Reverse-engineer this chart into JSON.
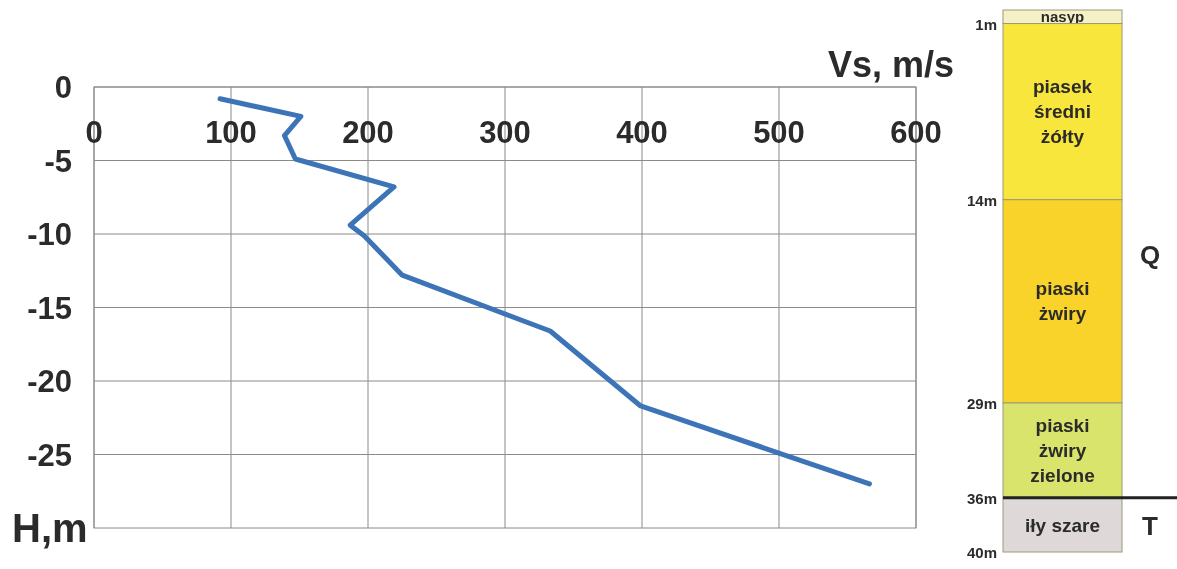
{
  "chart_data": [
    {
      "type": "line",
      "xlabel": "Vs, m/s",
      "ylabel": "H,m",
      "xlim": [
        0,
        600
      ],
      "xticks": [
        0,
        100,
        200,
        300,
        400,
        500,
        600
      ],
      "ylim": [
        -30,
        0
      ],
      "yticks": [
        0,
        -5,
        -10,
        -15,
        -20,
        -25
      ],
      "grid": true,
      "marker": "none",
      "line_style": "solid",
      "series": [
        {
          "color": "#3d74b8",
          "x": [
            92,
            151,
            139,
            147,
            219,
            187,
            197,
            225,
            333,
            399,
            566
          ],
          "values": [
            -0.8,
            -2.0,
            -3.3,
            -4.9,
            -6.8,
            -9.4,
            -10.1,
            -12.8,
            -16.6,
            -21.7,
            -27.0
          ]
        }
      ]
    },
    {
      "type": "bar",
      "stacked": true,
      "categories": [
        null
      ],
      "ylim": [
        40,
        0
      ],
      "yticks": [
        {
          "value": 1,
          "label": "1m"
        },
        {
          "value": 14,
          "label": "14m"
        },
        {
          "value": 29,
          "label": "29m"
        },
        {
          "value": 36,
          "label": "36m"
        },
        {
          "value": 40,
          "label": "40m"
        }
      ],
      "tick_labels": "y",
      "series": [
        {
          "name": "nasyp",
          "color": "#f6f0c6",
          "values": [
            1
          ]
        },
        {
          "name": "piasek średni żółty",
          "color": "#f8e63c",
          "values": [
            13
          ]
        },
        {
          "name": "piaski żwiry",
          "color": "#f9d22a",
          "values": [
            15
          ]
        },
        {
          "name": "piaski żwiry zielone",
          "color": "#d9e46c",
          "values": [
            7
          ]
        },
        {
          "name": "iły szare",
          "color": "#ded8d8",
          "values": [
            4
          ]
        }
      ],
      "ref_lines": [
        {
          "axis": "y",
          "value": 36,
          "color": "#222222"
        }
      ],
      "annotations": [
        "Q",
        "T"
      ]
    }
  ]
}
